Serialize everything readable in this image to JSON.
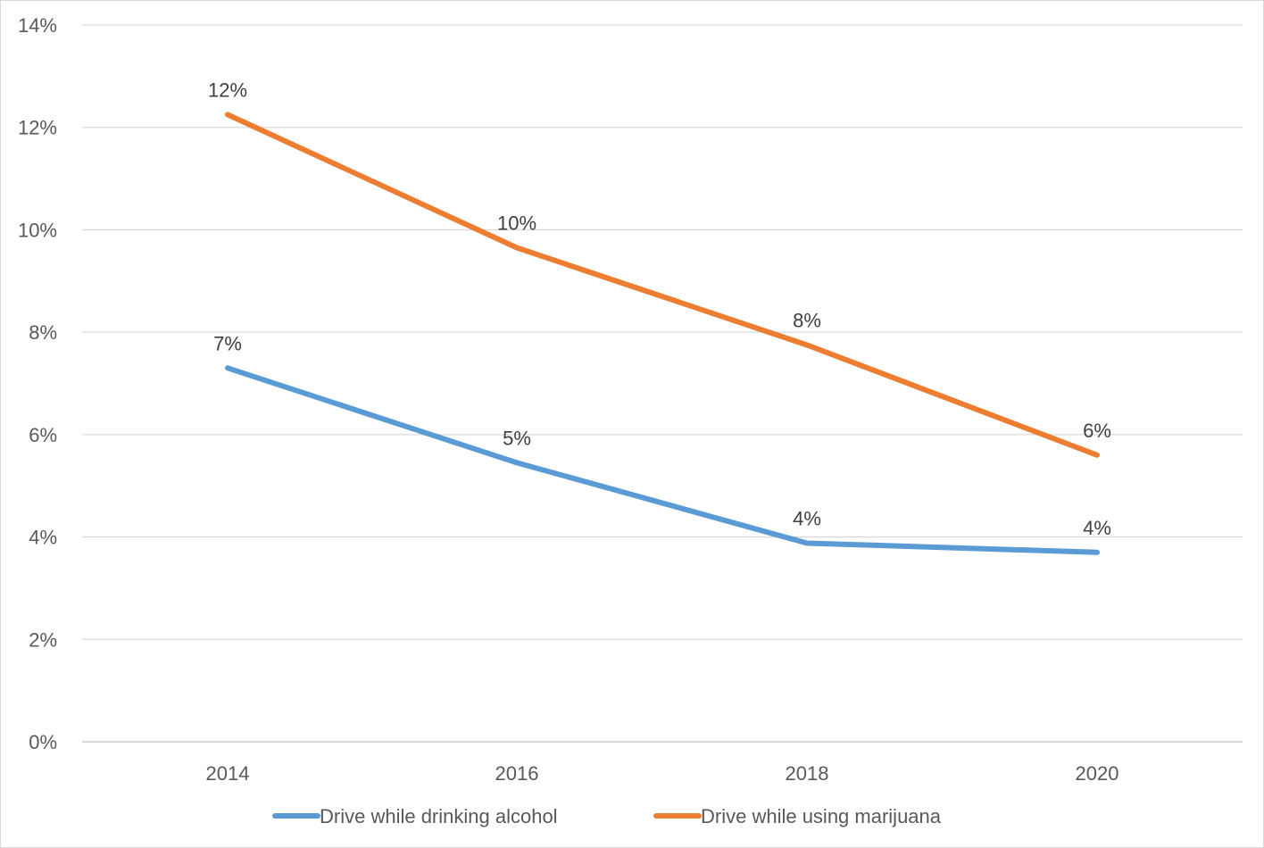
{
  "chart_data": {
    "type": "line",
    "title": "",
    "xlabel": "",
    "ylabel": "",
    "categories": [
      "2014",
      "2016",
      "2018",
      "2020"
    ],
    "ylim": [
      0,
      14
    ],
    "y_ticks": [
      0,
      2,
      4,
      6,
      8,
      10,
      12,
      14
    ],
    "y_tick_labels": [
      "0%",
      "2%",
      "4%",
      "6%",
      "8%",
      "10%",
      "12%",
      "14%"
    ],
    "grid": true,
    "legend_position": "bottom",
    "series": [
      {
        "name": "Drive while drinking alcohol",
        "color": "#5B9BD5",
        "values": [
          7.3,
          5.45,
          3.88,
          3.7
        ],
        "labels": [
          "7%",
          "5%",
          "4%",
          "4%"
        ]
      },
      {
        "name": "Drive while using marijuana",
        "color": "#ED7D31",
        "values": [
          12.25,
          9.65,
          7.75,
          5.6
        ],
        "labels": [
          "12%",
          "10%",
          "8%",
          "6%"
        ]
      }
    ]
  }
}
